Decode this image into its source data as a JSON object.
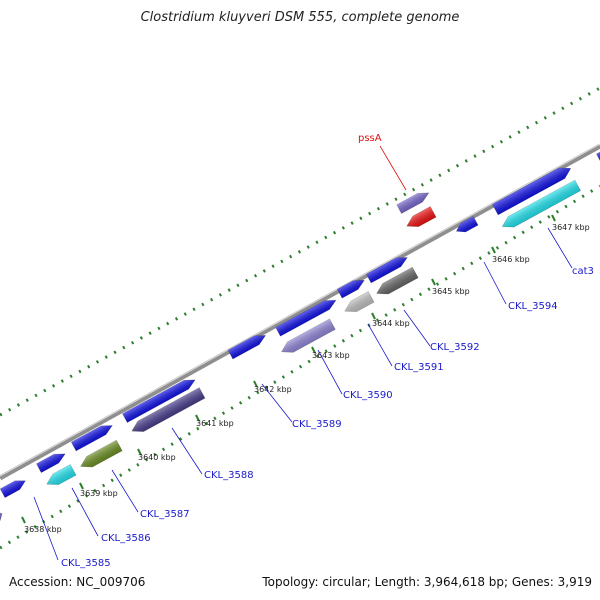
{
  "title": "Clostridium kluyveri DSM 555, complete genome",
  "accession": "Accession: NC_009706",
  "summary": "Topology: circular; Length: 3,964,618 bp; Genes: 3,919",
  "colors": {
    "backbone": "#9a9a9a",
    "tick": "#2f7f2f",
    "label_blue": "#1a1acc",
    "label_red": "#dd1111",
    "gene_blue": "#1212e6",
    "gene_cyan": "#22e2ee",
    "gene_slateblue": "#7766cc",
    "gene_darkslate": "#483d8b",
    "gene_olive": "#6b8e23",
    "gene_gray": "#666666",
    "gene_silver": "#c0c0c0",
    "gene_red": "#ee1111",
    "gene_lightslate": "#8f86d6"
  },
  "scale_labels": [
    "3638 kbp",
    "3639 kbp",
    "3640 kbp",
    "3641 kbp",
    "3642 kbp",
    "3643 kbp",
    "3644 kbp",
    "3645 kbp",
    "3646 kbp",
    "3647 kbp"
  ],
  "genes": [
    {
      "label": "",
      "color": "gene_slateblue",
      "strand": "forward"
    },
    {
      "label": "",
      "color": "gene_blue",
      "strand": "forward"
    },
    {
      "label": "CKL_3585",
      "color": "gene_cyan",
      "strand": "reverse"
    },
    {
      "label": "",
      "color": "gene_blue",
      "strand": "forward"
    },
    {
      "label": "CKL_3586",
      "color": "gene_olive",
      "strand": "reverse"
    },
    {
      "label": "",
      "color": "gene_blue",
      "strand": "forward"
    },
    {
      "label": "CKL_3587",
      "color": "gene_darkslate",
      "strand": "reverse"
    },
    {
      "label": "",
      "color": "gene_blue",
      "strand": "forward"
    },
    {
      "label": "CKL_3588",
      "color": "gene_blue",
      "strand": "forward"
    },
    {
      "label": "CKL_3589",
      "color": "gene_blue",
      "strand": "forward"
    },
    {
      "label": "CKL_3590",
      "color": "gene_lightslate",
      "strand": "reverse"
    },
    {
      "label": "",
      "color": "gene_blue",
      "strand": "forward"
    },
    {
      "label": "CKL_3591",
      "color": "gene_silver",
      "strand": "reverse"
    },
    {
      "label": "CKL_3592",
      "color": "gene_gray",
      "strand": "reverse"
    },
    {
      "label": "",
      "color": "gene_blue",
      "strand": "forward"
    },
    {
      "label": "pssA",
      "color": "gene_red",
      "strand": "reverse"
    },
    {
      "label": "",
      "color": "gene_slateblue",
      "strand": "forward"
    },
    {
      "label": "CKL_3594",
      "color": "gene_blue",
      "strand": "reverse"
    },
    {
      "label": "",
      "color": "gene_blue",
      "strand": "forward"
    },
    {
      "label": "cat3",
      "color": "gene_cyan",
      "strand": "reverse"
    }
  ]
}
